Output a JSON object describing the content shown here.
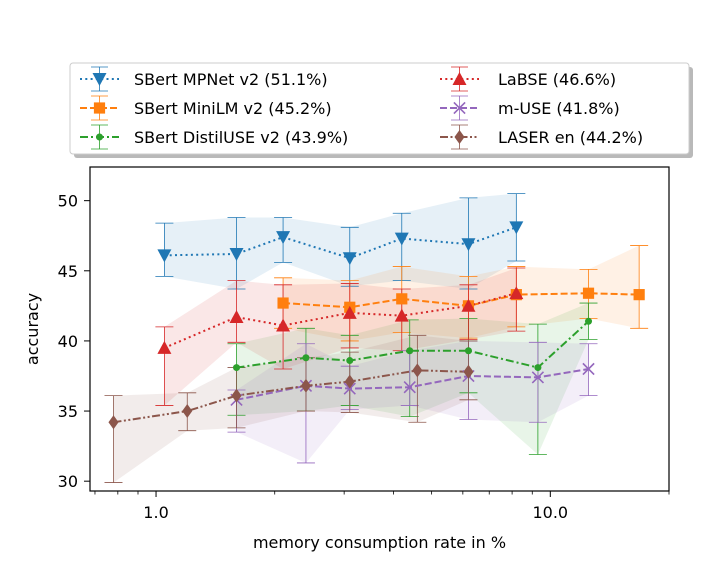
{
  "chart_data": {
    "type": "line",
    "xscale": "log",
    "xlabel": "memory consumption rate in %",
    "ylabel": "accuracy",
    "xlim": [
      0.68,
      20.0
    ],
    "ylim": [
      29.3,
      52.4
    ],
    "xticks": [
      {
        "value": 1.0,
        "label": "1.0"
      },
      {
        "value": 10.0,
        "label": "10.0"
      }
    ],
    "yticks": [
      {
        "value": 30,
        "label": "30"
      },
      {
        "value": 35,
        "label": "35"
      },
      {
        "value": 40,
        "label": "40"
      },
      {
        "value": 45,
        "label": "45"
      },
      {
        "value": 50,
        "label": "50"
      }
    ],
    "legend_position": "top",
    "series": [
      {
        "name": "SBert MPNet v2 (51.1%)",
        "color": "#1f77b4",
        "marker": "triangle-down",
        "linestyle": "dotted",
        "x": [
          1.05,
          1.6,
          2.1,
          3.1,
          4.2,
          6.2,
          8.2
        ],
        "y": [
          46.1,
          46.2,
          47.4,
          45.9,
          47.3,
          46.9,
          48.1
        ],
        "err_low": [
          44.6,
          43.7,
          45.6,
          43.9,
          44.3,
          43.7,
          45.7
        ],
        "err_high": [
          48.4,
          48.8,
          48.8,
          48.1,
          49.1,
          50.2,
          50.5
        ]
      },
      {
        "name": "SBert MiniLM v2 (45.2%)",
        "color": "#ff7f0e",
        "marker": "square",
        "linestyle": "dashed",
        "x": [
          2.1,
          3.1,
          4.2,
          6.2,
          8.2,
          12.5,
          16.8
        ],
        "y": [
          42.7,
          42.4,
          43.0,
          42.5,
          43.3,
          43.4,
          43.3
        ],
        "err_low": [
          40.9,
          40.0,
          40.6,
          40.2,
          41.0,
          41.6,
          40.9
        ],
        "err_high": [
          44.5,
          44.3,
          45.3,
          44.6,
          45.3,
          45.1,
          46.8
        ]
      },
      {
        "name": "SBert DistilUSE v2 (43.9%)",
        "color": "#2ca02c",
        "marker": "point",
        "linestyle": "dashdot",
        "x": [
          1.6,
          2.4,
          3.1,
          4.4,
          6.2,
          9.3,
          12.5
        ],
        "y": [
          38.1,
          38.8,
          38.6,
          39.3,
          39.3,
          38.1,
          41.4
        ],
        "err_low": [
          34.7,
          35.0,
          35.4,
          34.6,
          36.3,
          31.9,
          40.1
        ],
        "err_high": [
          39.8,
          40.9,
          40.4,
          41.5,
          41.6,
          41.2,
          42.7
        ]
      },
      {
        "name": "LaBSE (46.6%)",
        "color": "#d62728",
        "marker": "triangle-up",
        "linestyle": "dotted",
        "x": [
          1.05,
          1.6,
          2.1,
          3.1,
          4.2,
          6.2,
          8.2
        ],
        "y": [
          39.5,
          41.7,
          41.1,
          42.0,
          41.8,
          42.5,
          43.4
        ],
        "err_low": [
          35.4,
          39.9,
          38.0,
          39.5,
          39.3,
          40.1,
          40.7
        ],
        "err_high": [
          41.0,
          44.3,
          44.0,
          44.1,
          43.7,
          44.0,
          45.2
        ]
      },
      {
        "name": "m-USE (41.8%)",
        "color": "#9467bd",
        "marker": "x",
        "linestyle": "dashed",
        "x": [
          1.6,
          2.4,
          3.1,
          4.4,
          6.2,
          9.3,
          12.5
        ],
        "y": [
          35.8,
          36.8,
          36.6,
          36.7,
          37.5,
          37.4,
          38.0
        ],
        "err_low": [
          33.5,
          31.3,
          35.1,
          35.4,
          34.4,
          34.2,
          36.1
        ],
        "err_high": [
          36.5,
          39.8,
          38.2,
          39.3,
          40.0,
          39.9,
          39.8
        ]
      },
      {
        "name": "LASER en (44.2%)",
        "color": "#8c564b",
        "marker": "diamond",
        "linestyle": "dashdotdot",
        "x": [
          0.78,
          1.2,
          1.6,
          2.4,
          3.1,
          4.6,
          6.2
        ],
        "y": [
          34.2,
          35.0,
          36.1,
          36.8,
          37.1,
          37.9,
          37.8
        ],
        "err_low": [
          29.9,
          33.6,
          33.8,
          35.0,
          34.9,
          34.2,
          35.8
        ],
        "err_high": [
          36.1,
          36.3,
          38.1,
          38.8,
          39.2,
          40.4,
          40.0
        ]
      }
    ]
  }
}
